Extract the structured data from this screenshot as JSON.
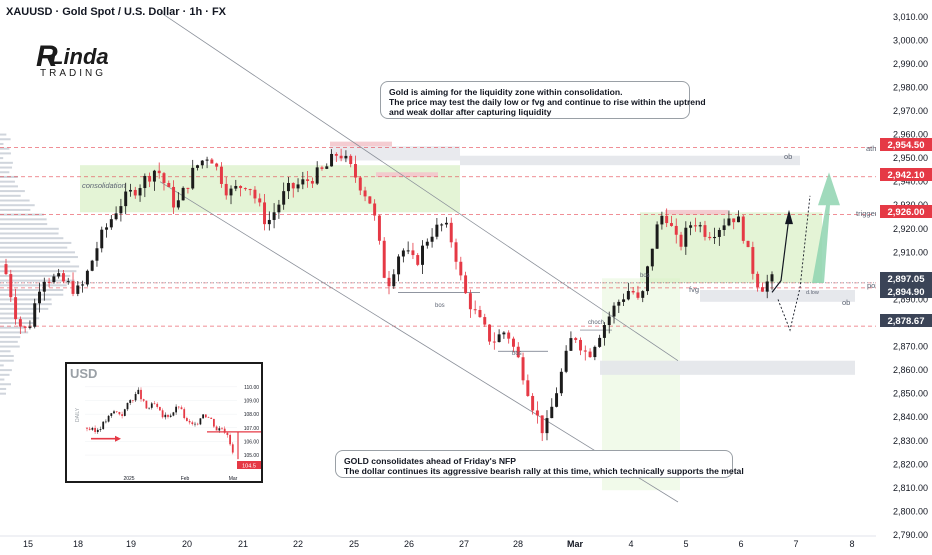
{
  "header": {
    "title": "XAUUSD · Gold Spot / U.S. Dollar · 1h · FX"
  },
  "logo": {
    "brand_letter": "R",
    "brand_name": "Linda",
    "brand_sub": "TRADING"
  },
  "colors": {
    "up_candle": "#1b1b1b",
    "down_candle": "#e53945",
    "zone_green": "#d8f0c4",
    "zone_gray": "#e3e5ea",
    "zone_pink": "#f3c6cc",
    "price_red": "#e53945",
    "price_dark": "#3b4457",
    "projection_green": "#8fd3b0"
  },
  "callouts": {
    "top": {
      "line1": "Gold is aiming for the liquidity zone within consolidation.",
      "line2": "The price may test the daily low or fvg and continue to rise within the uptrend",
      "line3": "and weak dollar after capturing liquidity"
    },
    "bottom": {
      "line1": "GOLD consolidates ahead of Friday's NFP",
      "line2": "The dollar continues its aggressive bearish rally at this time, which technically supports the metal"
    }
  },
  "annotations": {
    "consolidation": "consolidation",
    "ath": "ath",
    "ob_top": "ob",
    "ob_bottom": "ob",
    "trigger": "trigger",
    "poi": "poi",
    "fvg": "fvg",
    "bos_1": "bos",
    "bos_2": "bos",
    "bos_3": "bos",
    "choch": "choch",
    "dlow": "d.low"
  },
  "price_labels": {
    "p1": "2,954.50",
    "p2": "2,942.10",
    "p3": "2,926.00",
    "p4": "2,897.05",
    "p5": "2,894.90",
    "p6": "2,878.67"
  },
  "inset": {
    "title": "USD",
    "side_label": "DAILY",
    "price_tag": "104.5",
    "y_ticks": [
      "110.00",
      "109.00",
      "108.00",
      "107.00",
      "106.00",
      "105.00"
    ],
    "x_ticks": [
      "2025",
      "Feb",
      "Mar"
    ]
  },
  "chart_data": {
    "type": "candlestick",
    "title": "XAUUSD · Gold Spot / U.S. Dollar · 1h · FX",
    "xlabel": "",
    "ylabel": "",
    "ylim": [
      2790,
      3015
    ],
    "y_ticks": [
      3010,
      3000,
      2990,
      2980,
      2970,
      2960,
      2950,
      2940,
      2930,
      2920,
      2910,
      2900,
      2890,
      2880,
      2870,
      2860,
      2850,
      2840,
      2830,
      2820,
      2810,
      2800,
      2790
    ],
    "y_tick_labels": [
      "3,010.00",
      "3,000.00",
      "2,990.00",
      "2,980.00",
      "2,970.00",
      "2,960.00",
      "2,950.00",
      "2,940.00",
      "2,930.00",
      "2,920.00",
      "2,910.00",
      "2,900.00",
      "2,890.00",
      "2,880.00",
      "2,870.00",
      "2,860.00",
      "2,850.00",
      "2,840.00",
      "2,830.00",
      "2,820.00",
      "2,810.00",
      "2,800.00",
      "2,790.00"
    ],
    "x_tick_labels": [
      "15",
      "18",
      "19",
      "20",
      "21",
      "22",
      "25",
      "26",
      "27",
      "28",
      "Mar",
      "4",
      "5",
      "6",
      "7",
      "8"
    ],
    "key_levels": [
      {
        "name": "ath",
        "value": 2954.5
      },
      {
        "value": 2942.1
      },
      {
        "name": "trigger",
        "value": 2926.0
      },
      {
        "name": "poi",
        "value": 2897.05
      },
      {
        "value": 2894.9
      },
      {
        "value": 2878.67
      }
    ],
    "path": [
      [
        0,
        2905
      ],
      [
        3,
        2880
      ],
      [
        5,
        2876
      ],
      [
        8,
        2900
      ],
      [
        12,
        2898
      ],
      [
        16,
        2893
      ],
      [
        20,
        2915
      ],
      [
        24,
        2930
      ],
      [
        29,
        2940
      ],
      [
        32,
        2946
      ],
      [
        36,
        2929
      ],
      [
        40,
        2946
      ],
      [
        43,
        2952
      ],
      [
        47,
        2935
      ],
      [
        51,
        2940
      ],
      [
        55,
        2922
      ],
      [
        59,
        2936
      ],
      [
        63,
        2940
      ],
      [
        67,
        2945
      ],
      [
        70,
        2953
      ],
      [
        73,
        2944
      ],
      [
        77,
        2930
      ],
      [
        80,
        2895
      ],
      [
        83,
        2912
      ],
      [
        86,
        2905
      ],
      [
        89,
        2918
      ],
      [
        92,
        2922
      ],
      [
        94,
        2913
      ],
      [
        96,
        2894
      ],
      [
        99,
        2882
      ],
      [
        102,
        2872
      ],
      [
        105,
        2877
      ],
      [
        108,
        2862
      ],
      [
        111,
        2842
      ],
      [
        113,
        2833
      ],
      [
        116,
        2855
      ],
      [
        119,
        2876
      ],
      [
        122,
        2866
      ],
      [
        125,
        2878
      ],
      [
        128,
        2888
      ],
      [
        131,
        2895
      ],
      [
        133,
        2887
      ],
      [
        136,
        2918
      ],
      [
        138,
        2928
      ],
      [
        141,
        2912
      ],
      [
        144,
        2924
      ],
      [
        147,
        2918
      ],
      [
        149,
        2920
      ],
      [
        152,
        2926
      ],
      [
        154,
        2922
      ],
      [
        156,
        2905
      ],
      [
        158,
        2895
      ],
      [
        160,
        2898
      ]
    ],
    "projections": [
      {
        "from": [
          2886.5,
          2892.5
        ],
        "to": [
          2928,
          2925
        ]
      },
      {
        "from": [
          2887.5,
          2882
        ],
        "to": [
          2937,
          2925
        ]
      },
      {
        "from": [
          2888.5,
          2902
        ],
        "to": [
          2901,
          2880
        ]
      }
    ]
  }
}
